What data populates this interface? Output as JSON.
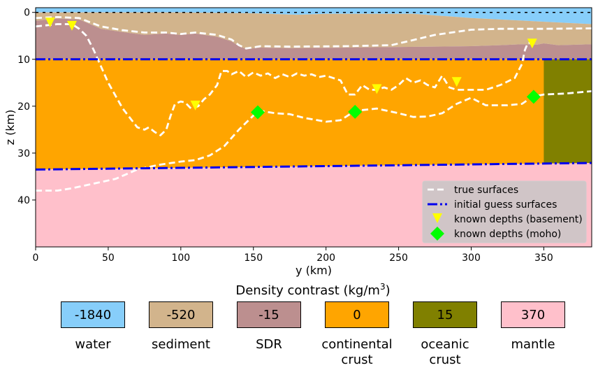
{
  "chart_data": {
    "type": "area",
    "title": "",
    "xlabel": "y (km)",
    "ylabel": "z (km)",
    "xlim": [
      0,
      383
    ],
    "ylim": [
      50,
      -1
    ],
    "y_inverted": true,
    "xticks": [
      0,
      50,
      100,
      150,
      200,
      250,
      300,
      350
    ],
    "yticks": [
      0,
      10,
      20,
      30,
      40
    ],
    "grid": false,
    "legend_position": "bottom-right",
    "layers": [
      {
        "name": "water",
        "density": "-1840",
        "color": "#87cefa"
      },
      {
        "name": "sediment",
        "density": "-520",
        "color": "#d2b48c"
      },
      {
        "name": "SDR",
        "density": "-15",
        "color": "#bc8f8f"
      },
      {
        "name": "continental crust",
        "density": "0",
        "color": "#ffa500"
      },
      {
        "name": "oceanic crust",
        "density": "15",
        "color": "#808000"
      },
      {
        "name": "mantle",
        "density": "370",
        "color": "#ffc0cb"
      }
    ],
    "boundaries": {
      "water_bottom": [
        [
          0,
          0
        ],
        [
          100,
          0
        ],
        [
          150,
          0.2
        ],
        [
          180,
          0.5
        ],
        [
          200,
          0.3
        ],
        [
          260,
          0.3
        ],
        [
          300,
          1.2
        ],
        [
          383,
          2.5
        ]
      ],
      "sediment_bottom": [
        [
          0,
          1.8
        ],
        [
          15,
          1.3
        ],
        [
          30,
          1.5
        ],
        [
          45,
          3.5
        ],
        [
          60,
          4.2
        ],
        [
          75,
          4.8
        ],
        [
          90,
          4.5
        ],
        [
          100,
          4.8
        ],
        [
          110,
          4.5
        ],
        [
          125,
          5.2
        ],
        [
          135,
          6.2
        ],
        [
          140,
          7.2
        ],
        [
          145,
          7.8
        ],
        [
          155,
          7.5
        ],
        [
          175,
          7.6
        ],
        [
          215,
          7.5
        ],
        [
          245,
          7.4
        ],
        [
          300,
          7.2
        ],
        [
          320,
          7.0
        ],
        [
          335,
          6.8
        ],
        [
          345,
          6.9
        ],
        [
          350,
          6.6
        ],
        [
          360,
          7.0
        ],
        [
          383,
          6.8
        ]
      ],
      "sdr_bottom": [
        [
          0,
          10
        ],
        [
          383,
          10
        ]
      ],
      "crust_bottom": [
        [
          0,
          33.5
        ],
        [
          383,
          32.1
        ]
      ],
      "oceanic_start": 350
    },
    "series": [
      {
        "name": "true surfaces",
        "style": "white dashed",
        "surfaces": [
          [
            [
              0,
              1.2
            ],
            [
              15,
              1.0
            ],
            [
              30,
              1.2
            ],
            [
              45,
              3.0
            ],
            [
              60,
              3.8
            ],
            [
              75,
              4.3
            ],
            [
              90,
              4.3
            ],
            [
              100,
              4.6
            ],
            [
              110,
              4.3
            ],
            [
              125,
              4.8
            ],
            [
              135,
              5.8
            ],
            [
              140,
              7.0
            ],
            [
              145,
              7.7
            ],
            [
              155,
              7.2
            ],
            [
              175,
              7.3
            ],
            [
              215,
              7.2
            ],
            [
              245,
              7.0
            ],
            [
              275,
              4.8
            ],
            [
              300,
              3.7
            ],
            [
              320,
              3.5
            ],
            [
              350,
              3.5
            ],
            [
              383,
              3.4
            ]
          ],
          [
            [
              0,
              3.0
            ],
            [
              15,
              2.5
            ],
            [
              25,
              2.5
            ],
            [
              30,
              3.5
            ],
            [
              35,
              5
            ],
            [
              40,
              8
            ],
            [
              50,
              15
            ],
            [
              60,
              20.5
            ],
            [
              65,
              22.5
            ],
            [
              70,
              24.5
            ],
            [
              75,
              25
            ],
            [
              78,
              24.5
            ],
            [
              82,
              25.5
            ],
            [
              86,
              26.2
            ],
            [
              90,
              25
            ],
            [
              93,
              22
            ],
            [
              96,
              19.5
            ],
            [
              100,
              19
            ],
            [
              103,
              19.2
            ],
            [
              107,
              20.5
            ],
            [
              112,
              20
            ],
            [
              116,
              18.5
            ],
            [
              120,
              17.5
            ],
            [
              125,
              15.5
            ],
            [
              128,
              12.5
            ],
            [
              132,
              12.5
            ],
            [
              135,
              13.2
            ],
            [
              140,
              12.5
            ],
            [
              145,
              13.8
            ],
            [
              150,
              12.8
            ],
            [
              155,
              13.5
            ],
            [
              160,
              13
            ],
            [
              165,
              14
            ],
            [
              170,
              13.2
            ],
            [
              175,
              13.8
            ],
            [
              180,
              13
            ],
            [
              185,
              13.5
            ],
            [
              190,
              13.2
            ],
            [
              195,
              13.8
            ],
            [
              200,
              13.5
            ],
            [
              205,
              14
            ],
            [
              210,
              14.5
            ],
            [
              215,
              17.5
            ],
            [
              220,
              17.5
            ],
            [
              225,
              15.5
            ],
            [
              230,
              16.5
            ],
            [
              235,
              16.5
            ],
            [
              240,
              16
            ],
            [
              245,
              16.5
            ],
            [
              250,
              15.5
            ],
            [
              255,
              14
            ],
            [
              260,
              15
            ],
            [
              265,
              14.5
            ],
            [
              270,
              15.5
            ],
            [
              275,
              16
            ],
            [
              280,
              13.5
            ],
            [
              285,
              16
            ],
            [
              290,
              16.5
            ],
            [
              295,
              16.5
            ],
            [
              300,
              16.5
            ],
            [
              310,
              16.5
            ],
            [
              320,
              15.5
            ],
            [
              330,
              14
            ],
            [
              335,
              11
            ],
            [
              337,
              8
            ],
            [
              339,
              6.5
            ],
            [
              342,
              6.5
            ]
          ],
          [
            [
              0,
              38
            ],
            [
              15,
              38
            ],
            [
              25,
              37.5
            ],
            [
              40,
              36.5
            ],
            [
              55,
              35.5
            ],
            [
              70,
              33.5
            ],
            [
              85,
              32.5
            ],
            [
              100,
              31.8
            ],
            [
              110,
              31.5
            ],
            [
              120,
              30.5
            ],
            [
              130,
              28.5
            ],
            [
              140,
              25
            ],
            [
              150,
              22
            ],
            [
              155,
              21
            ],
            [
              165,
              21.5
            ],
            [
              175,
              21.7
            ],
            [
              185,
              22.5
            ],
            [
              200,
              23.3
            ],
            [
              210,
              23
            ],
            [
              220,
              21
            ],
            [
              235,
              20.5
            ],
            [
              250,
              21.5
            ],
            [
              260,
              22.3
            ],
            [
              270,
              22.2
            ],
            [
              280,
              21.5
            ],
            [
              290,
              19.5
            ],
            [
              300,
              18.2
            ],
            [
              310,
              19.8
            ],
            [
              325,
              19.8
            ],
            [
              335,
              19.5
            ],
            [
              342,
              18
            ],
            [
              350,
              17.5
            ],
            [
              365,
              17.3
            ],
            [
              383,
              16.8
            ]
          ]
        ]
      },
      {
        "name": "initial guess surfaces",
        "style": "blue dash-dot",
        "surfaces": [
          [
            [
              0,
              10
            ],
            [
              383,
              10
            ]
          ],
          [
            [
              0,
              33.5
            ],
            [
              383,
              32.1
            ]
          ]
        ]
      },
      {
        "name": "known depths (basement)",
        "marker": "yellow triangle",
        "points": [
          [
            10,
            2.3
          ],
          [
            25,
            3
          ],
          [
            110,
            20
          ],
          [
            235,
            16.5
          ],
          [
            290,
            15
          ],
          [
            342,
            6.8
          ]
        ]
      },
      {
        "name": "known depths (moho)",
        "marker": "green diamond",
        "points": [
          [
            153,
            21.3
          ],
          [
            220,
            21.2
          ],
          [
            343,
            18
          ]
        ]
      }
    ]
  }
}
